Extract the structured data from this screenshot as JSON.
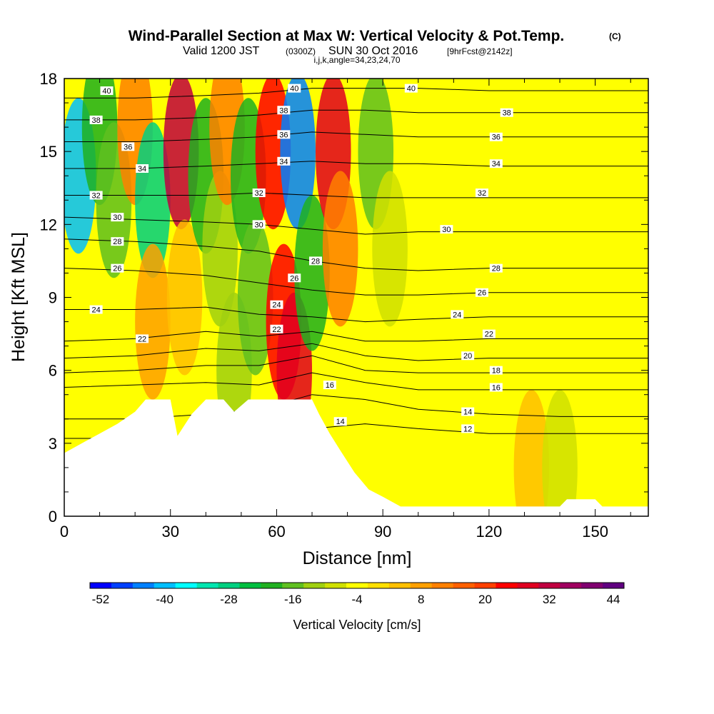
{
  "header": {
    "title": "Wind-Parallel Section at Max W: Vertical Velocity & Pot.Temp.",
    "title_mark": "(C)",
    "valid_prefix": "Valid 1200 JST",
    "valid_zulu": "(0300Z)",
    "valid_date": "SUN 30 Oct 2016",
    "forecast": "[9hrFcst@2142z]",
    "indices": "i,j,k,angle=34,23,24,70"
  },
  "chart_data": {
    "type": "heatmap",
    "xlabel": "Distance [nm]",
    "ylabel": "Height [Kft MSL]",
    "xlim": [
      0,
      165
    ],
    "ylim": [
      0,
      18
    ],
    "x_ticks": [
      0,
      30,
      60,
      90,
      120,
      150
    ],
    "y_ticks": [
      0,
      3,
      6,
      9,
      12,
      15,
      18
    ],
    "colorbar": {
      "label": "Vertical Velocity [cm/s]",
      "tick_labels": [
        "-52",
        "-40",
        "-28",
        "-16",
        "-4",
        "8",
        "20",
        "32",
        "44"
      ],
      "levels_min": -52,
      "levels_step": 4,
      "colors": [
        "#0000ff",
        "#0040ff",
        "#0080ff",
        "#00bfff",
        "#00ffff",
        "#00e6b0",
        "#00d080",
        "#00bf40",
        "#20b020",
        "#60c020",
        "#a0d010",
        "#d0e000",
        "#ffff00",
        "#ffe000",
        "#ffc000",
        "#ffa000",
        "#ff8000",
        "#ff6000",
        "#ff4000",
        "#ff0000",
        "#e00020",
        "#c00040",
        "#a00060",
        "#800070",
        "#600080"
      ]
    },
    "terrain_kft": [
      [
        0,
        2.6
      ],
      [
        5,
        3.0
      ],
      [
        10,
        3.4
      ],
      [
        15,
        3.8
      ],
      [
        20,
        4.3
      ],
      [
        23,
        4.8
      ],
      [
        30,
        4.8
      ],
      [
        32,
        3.3
      ],
      [
        36,
        4.2
      ],
      [
        40,
        4.8
      ],
      [
        45,
        4.8
      ],
      [
        48,
        4.3
      ],
      [
        52,
        4.8
      ],
      [
        70,
        4.8
      ],
      [
        72,
        4.2
      ],
      [
        75,
        3.4
      ],
      [
        78,
        2.7
      ],
      [
        82,
        1.8
      ],
      [
        86,
        1.1
      ],
      [
        90,
        0.8
      ],
      [
        95,
        0.4
      ],
      [
        140,
        0.4
      ],
      [
        142,
        0.7
      ],
      [
        150,
        0.7
      ],
      [
        152,
        0.4
      ],
      [
        165,
        0.4
      ]
    ],
    "vertical_velocity_cells": [
      {
        "x": 4,
        "z": 14,
        "w": -38
      },
      {
        "x": 10,
        "z": 16,
        "w": -20
      },
      {
        "x": 14,
        "z": 13,
        "w": -16
      },
      {
        "x": 20,
        "z": 16,
        "w": 12
      },
      {
        "x": 25,
        "z": 13,
        "w": -26
      },
      {
        "x": 25,
        "z": 8,
        "w": 10
      },
      {
        "x": 33,
        "z": 15,
        "w": 32
      },
      {
        "x": 34,
        "z": 9,
        "w": 4
      },
      {
        "x": 40,
        "z": 14,
        "w": -18
      },
      {
        "x": 44,
        "z": 11,
        "w": -12
      },
      {
        "x": 46,
        "z": 16,
        "w": 12
      },
      {
        "x": 48,
        "z": 6,
        "w": -12
      },
      {
        "x": 52,
        "z": 14,
        "w": -20
      },
      {
        "x": 54,
        "z": 9,
        "w": -14
      },
      {
        "x": 59,
        "z": 15,
        "w": 24
      },
      {
        "x": 62,
        "z": 8,
        "w": 26
      },
      {
        "x": 65,
        "z": 6,
        "w": 30
      },
      {
        "x": 66,
        "z": 15,
        "w": -44
      },
      {
        "x": 70,
        "z": 10,
        "w": -20
      },
      {
        "x": 76,
        "z": 15,
        "w": 30
      },
      {
        "x": 78,
        "z": 11,
        "w": 14
      },
      {
        "x": 88,
        "z": 15,
        "w": -14
      },
      {
        "x": 92,
        "z": 11,
        "w": -6
      },
      {
        "x": 108,
        "z": 2,
        "w": -2
      },
      {
        "x": 132,
        "z": 2,
        "w": 4
      },
      {
        "x": 140,
        "z": 2,
        "w": -6
      }
    ],
    "isentropes": [
      {
        "theta": 12,
        "z": [
          3.2,
          3.2,
          3.2,
          3.2,
          3.6,
          3.8,
          3.6,
          3.4,
          3.4,
          3.4
        ]
      },
      {
        "theta": 14,
        "z": [
          4.0,
          4.0,
          4.2,
          4.4,
          5.0,
          4.8,
          4.4,
          4.2,
          4.1,
          4.1
        ]
      },
      {
        "theta": 16,
        "z": [
          5.3,
          5.4,
          5.5,
          5.4,
          5.9,
          5.5,
          5.2,
          5.2,
          5.2,
          5.2
        ]
      },
      {
        "theta": 18,
        "z": [
          5.9,
          6.0,
          6.2,
          6.2,
          6.6,
          6.0,
          5.9,
          5.9,
          5.9,
          5.9
        ]
      },
      {
        "theta": 20,
        "z": [
          6.5,
          6.6,
          6.9,
          6.8,
          7.1,
          6.6,
          6.4,
          6.5,
          6.5,
          6.5
        ]
      },
      {
        "theta": 22,
        "z": [
          7.2,
          7.3,
          7.6,
          7.4,
          7.6,
          7.2,
          7.2,
          7.3,
          7.3,
          7.3
        ]
      },
      {
        "theta": 24,
        "z": [
          8.5,
          8.5,
          8.6,
          8.3,
          8.2,
          8.0,
          8.1,
          8.2,
          8.2,
          8.2
        ]
      },
      {
        "theta": 26,
        "z": [
          10.2,
          10.1,
          9.9,
          9.6,
          9.3,
          9.1,
          9.1,
          9.2,
          9.2,
          9.2
        ]
      },
      {
        "theta": 28,
        "z": [
          11.4,
          11.3,
          11.1,
          10.9,
          10.5,
          10.2,
          10.1,
          10.2,
          10.2,
          10.2
        ]
      },
      {
        "theta": 30,
        "z": [
          12.3,
          12.2,
          12.1,
          12.0,
          11.8,
          11.6,
          11.7,
          11.7,
          11.7,
          11.7
        ]
      },
      {
        "theta": 32,
        "z": [
          13.2,
          13.2,
          13.2,
          13.3,
          13.2,
          13.1,
          13.1,
          13.1,
          13.1,
          13.1
        ]
      },
      {
        "theta": 34,
        "z": [
          14.3,
          14.3,
          14.4,
          14.5,
          14.6,
          14.5,
          14.5,
          14.4,
          14.4,
          14.4
        ]
      },
      {
        "theta": 36,
        "z": [
          15.4,
          15.4,
          15.5,
          15.6,
          15.8,
          15.7,
          15.6,
          15.6,
          15.6,
          15.6
        ]
      },
      {
        "theta": 38,
        "z": [
          16.3,
          16.3,
          16.4,
          16.5,
          16.7,
          16.7,
          16.6,
          16.6,
          16.6,
          16.6
        ]
      },
      {
        "theta": 40,
        "z": [
          17.2,
          17.2,
          17.3,
          17.4,
          17.6,
          17.6,
          17.6,
          17.5,
          17.5,
          17.5
        ]
      }
    ],
    "isentrope_x": [
      0,
      20,
      40,
      55,
      70,
      85,
      100,
      120,
      140,
      165
    ],
    "contour_labels": [
      {
        "text": "40",
        "x": 12,
        "z": 17.5
      },
      {
        "text": "38",
        "x": 9,
        "z": 16.3
      },
      {
        "text": "36",
        "x": 18,
        "z": 15.2
      },
      {
        "text": "34",
        "x": 22,
        "z": 14.3
      },
      {
        "text": "32",
        "x": 9,
        "z": 13.2
      },
      {
        "text": "30",
        "x": 15,
        "z": 12.3
      },
      {
        "text": "28",
        "x": 15,
        "z": 11.3
      },
      {
        "text": "26",
        "x": 15,
        "z": 10.2
      },
      {
        "text": "24",
        "x": 9,
        "z": 8.5
      },
      {
        "text": "22",
        "x": 22,
        "z": 7.3
      },
      {
        "text": "40",
        "x": 65,
        "z": 17.6
      },
      {
        "text": "38",
        "x": 62,
        "z": 16.7
      },
      {
        "text": "36",
        "x": 62,
        "z": 15.7
      },
      {
        "text": "34",
        "x": 62,
        "z": 14.6
      },
      {
        "text": "32",
        "x": 55,
        "z": 13.3
      },
      {
        "text": "30",
        "x": 55,
        "z": 12.0
      },
      {
        "text": "28",
        "x": 71,
        "z": 10.5
      },
      {
        "text": "26",
        "x": 65,
        "z": 9.8
      },
      {
        "text": "24",
        "x": 60,
        "z": 8.7
      },
      {
        "text": "22",
        "x": 60,
        "z": 7.7
      },
      {
        "text": "16",
        "x": 75,
        "z": 5.4
      },
      {
        "text": "14",
        "x": 78,
        "z": 3.9
      },
      {
        "text": "40",
        "x": 98,
        "z": 17.6
      },
      {
        "text": "38",
        "x": 125,
        "z": 16.6
      },
      {
        "text": "36",
        "x": 122,
        "z": 15.6
      },
      {
        "text": "34",
        "x": 122,
        "z": 14.5
      },
      {
        "text": "32",
        "x": 118,
        "z": 13.3
      },
      {
        "text": "30",
        "x": 108,
        "z": 11.8
      },
      {
        "text": "28",
        "x": 122,
        "z": 10.2
      },
      {
        "text": "26",
        "x": 118,
        "z": 9.2
      },
      {
        "text": "24",
        "x": 111,
        "z": 8.3
      },
      {
        "text": "22",
        "x": 120,
        "z": 7.5
      },
      {
        "text": "20",
        "x": 114,
        "z": 6.6
      },
      {
        "text": "18",
        "x": 122,
        "z": 6.0
      },
      {
        "text": "16",
        "x": 122,
        "z": 5.3
      },
      {
        "text": "14",
        "x": 114,
        "z": 4.3
      },
      {
        "text": "12",
        "x": 114,
        "z": 3.6
      }
    ]
  }
}
